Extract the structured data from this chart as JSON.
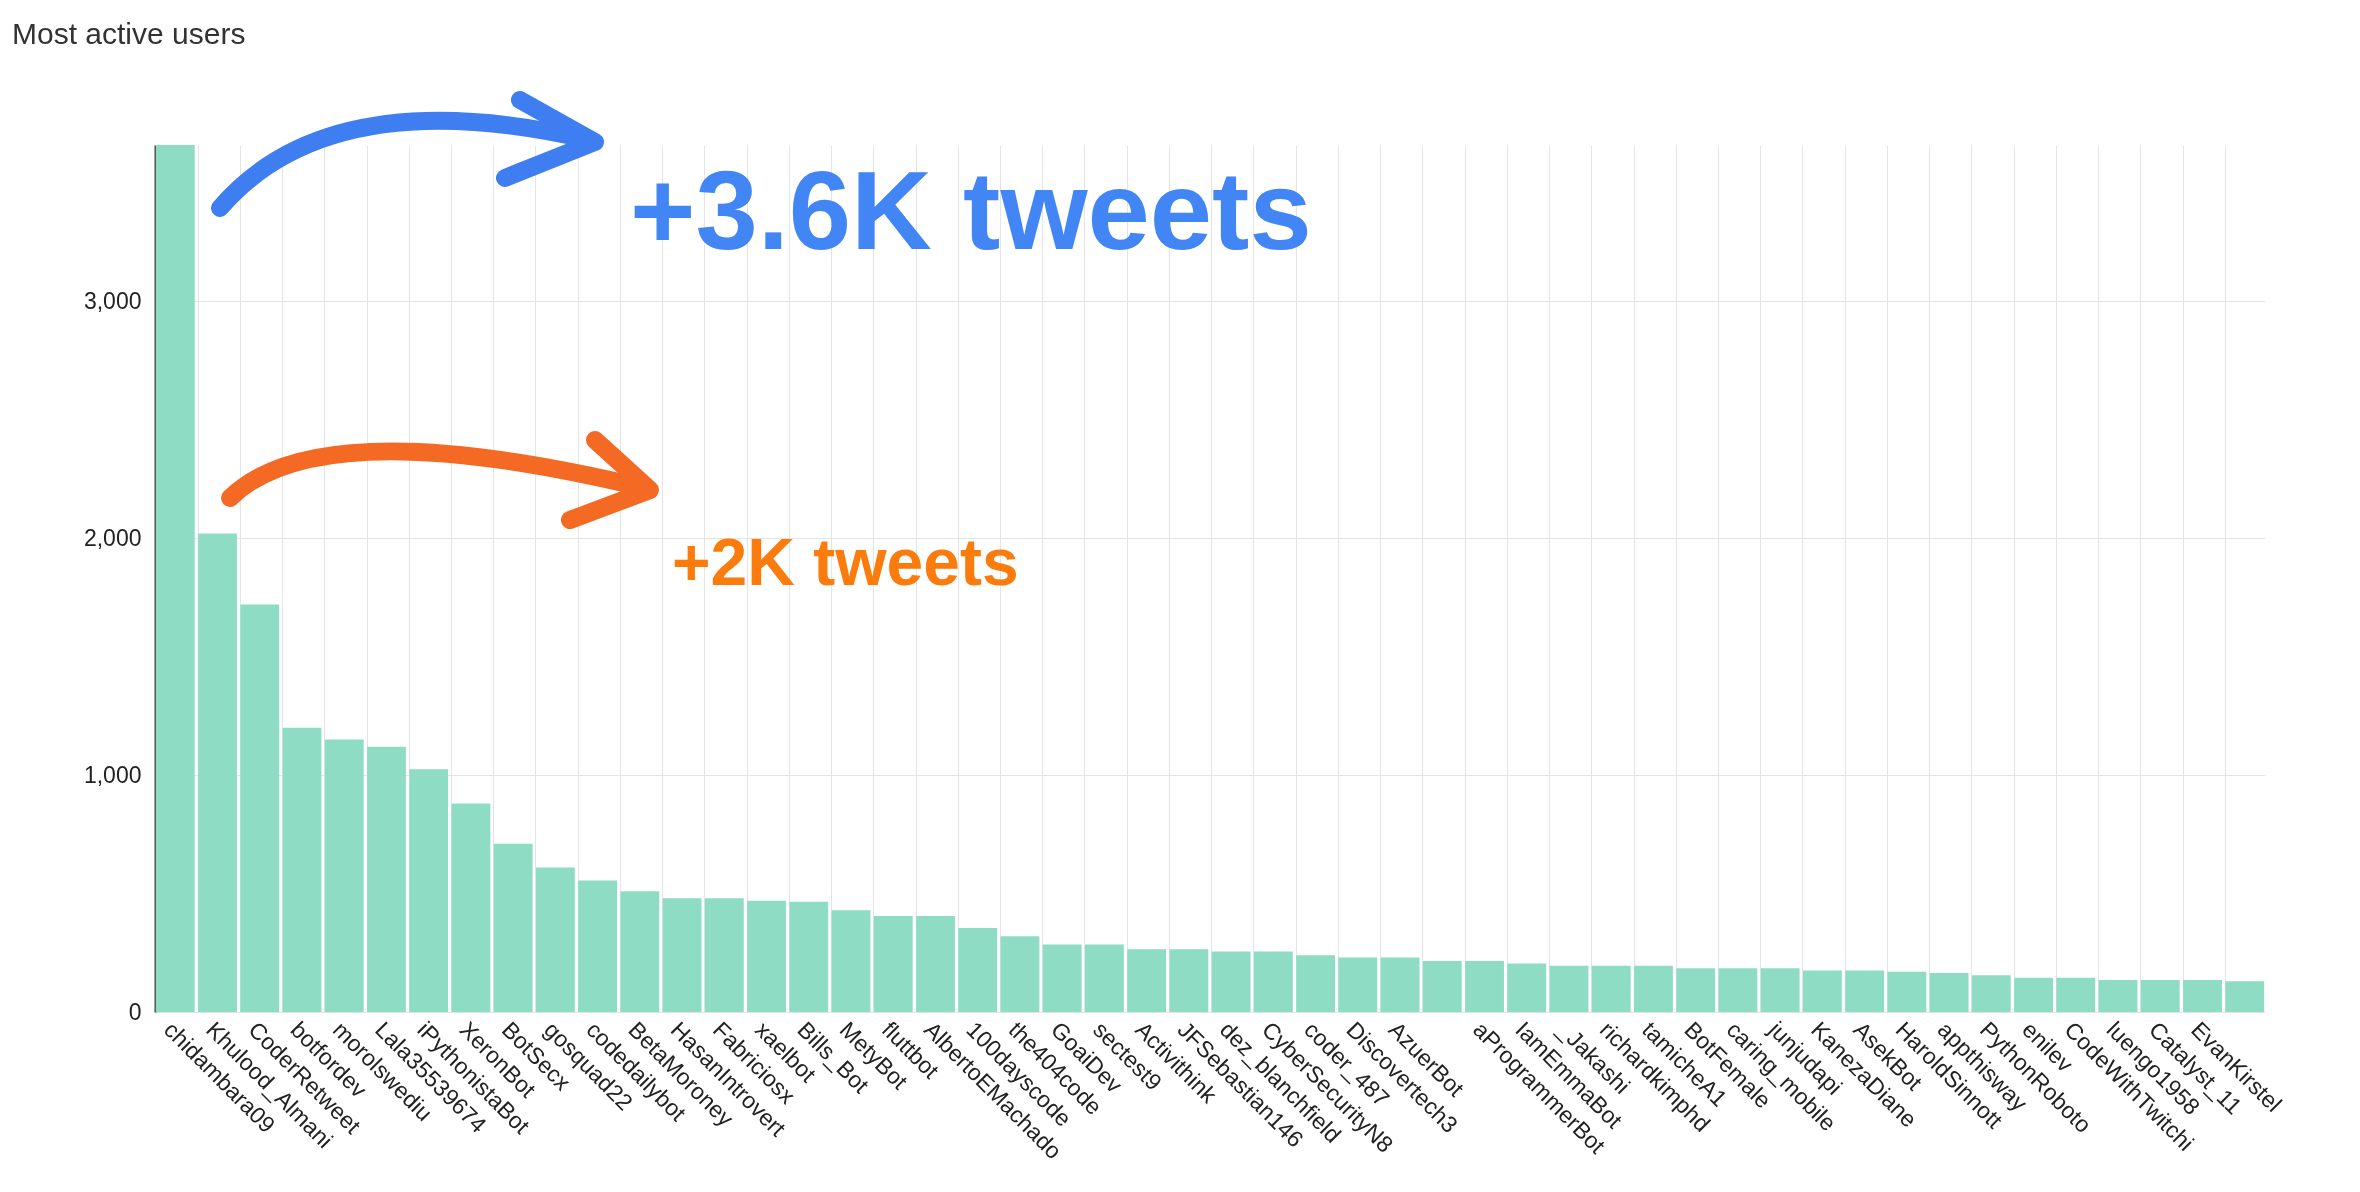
{
  "chart_data": {
    "type": "bar",
    "title": "Most active users",
    "categories": [
      "chidambara09",
      "Khulood_Almani",
      "CoderRetweet",
      "botfordev",
      "morolswediu",
      "Lala35539674",
      "iPythonistaBot",
      "XeronBot",
      "BotSecx",
      "gosquad22",
      "codedailybot",
      "BetaMoroney",
      "HasanIntrovert",
      "Fabriciosx",
      "xaelbot",
      "Bills_Bot",
      "MetyBot",
      "fluttbot",
      "AlbertoEMachado",
      "100dayscode",
      "the404code",
      "GoaiDev",
      "sectest9",
      "Activithink",
      "JFSebastian146",
      "dez_blanchfield",
      "CyberSecurityN8",
      "coder_487",
      "Discovertech3",
      "AzuerBot",
      null,
      "aProgrammerBot",
      "IamEmmaBot",
      "_Jakashi",
      "richardkimphd",
      "tamicheA1",
      "BotFemale",
      "caring_mobile",
      "junjudapi",
      "KanezaDiane",
      "AsekBot",
      "HaroldSinnott",
      "appthisway",
      "PythonRoboto",
      "enilev",
      "CodeWithTwitchi",
      "luengo1958",
      "Catalyst_11",
      "EvanKirstel",
      null
    ],
    "values": [
      3660,
      2020,
      1720,
      1200,
      1150,
      1120,
      1025,
      880,
      710,
      610,
      555,
      510,
      480,
      480,
      470,
      465,
      430,
      405,
      405,
      355,
      320,
      285,
      285,
      265,
      265,
      255,
      255,
      240,
      230,
      230,
      215,
      215,
      205,
      195,
      195,
      195,
      185,
      185,
      185,
      175,
      175,
      170,
      165,
      155,
      145,
      145,
      135,
      135,
      135,
      130
    ],
    "color": "#8ddcc3",
    "ylim": [
      0,
      3660
    ],
    "yticks": [
      0,
      {
        "value": 1000,
        "label": "1,000"
      },
      {
        "value": 2000,
        "label": "2,000"
      },
      {
        "value": 3000,
        "label": "3,000"
      }
    ],
    "grid": true,
    "annotations": [
      "+3.6K tweets",
      "+2K tweets"
    ]
  }
}
